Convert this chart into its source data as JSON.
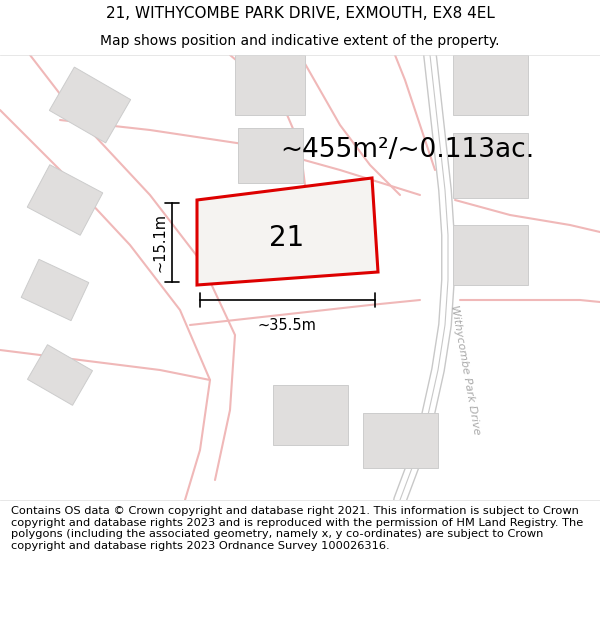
{
  "title_line1": "21, WITHYCOMBE PARK DRIVE, EXMOUTH, EX8 4EL",
  "title_line2": "Map shows position and indicative extent of the property.",
  "footer_text": "Contains OS data © Crown copyright and database right 2021. This information is subject to Crown copyright and database rights 2023 and is reproduced with the permission of HM Land Registry. The polygons (including the associated geometry, namely x, y co-ordinates) are subject to Crown copyright and database rights 2023 Ordnance Survey 100026316.",
  "area_label": "~455m²/~0.113ac.",
  "property_number": "21",
  "dim_width": "~35.5m",
  "dim_height": "~15.1m",
  "road_label": "Withycombe Park Drive",
  "map_bg": "#f7f5f3",
  "road_color": "#f0b8b8",
  "road_color2": "#e8a8a8",
  "building_fill": "#e0dedd",
  "building_edge": "#cccccc",
  "road_outline_color": "#c8c8c8",
  "property_edge_color": "#dd0000",
  "property_fill": "#f5f3f1",
  "title_fontsize": 11,
  "subtitle_fontsize": 10,
  "footer_fontsize": 8.2,
  "area_fontsize": 19,
  "number_fontsize": 20,
  "dim_fontsize": 10.5
}
